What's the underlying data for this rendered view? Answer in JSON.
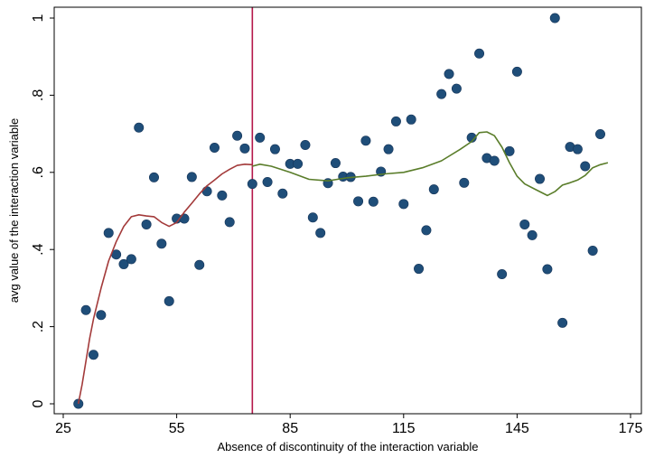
{
  "chart_data": {
    "type": "scatter",
    "title": "",
    "xlabel": "Absence of discontinuity of the interaction variable",
    "ylabel": "avg value of the interaction variable",
    "xlim": [
      25,
      175
    ],
    "ylim": [
      0,
      1
    ],
    "x_ticks": [
      25,
      55,
      85,
      115,
      145,
      175
    ],
    "y_ticks": [
      0,
      0.2,
      0.4,
      0.6,
      0.8,
      1
    ],
    "y_tick_labels": [
      "0",
      ".2",
      ".4",
      ".6",
      ".8",
      "1"
    ],
    "grid": false,
    "legend": "none",
    "cutoff_x": 75,
    "colors": {
      "points": "#1f4e79",
      "left_fit": "#a33a3a",
      "right_fit": "#5a7d2a",
      "cutoff_line": "#b5174a"
    },
    "series": [
      {
        "type": "scatter",
        "x": [
          29,
          31,
          33,
          35,
          37,
          39,
          41,
          43,
          45,
          47,
          49,
          51,
          53,
          55,
          57,
          59,
          61,
          63,
          65,
          67,
          69,
          71,
          73,
          75,
          77,
          79,
          81,
          83,
          85,
          87,
          89,
          91,
          93,
          95,
          97,
          99,
          101,
          103,
          105,
          107,
          109,
          111,
          113,
          115,
          117,
          119,
          121,
          123,
          125,
          127,
          129,
          131,
          133,
          135,
          137,
          139,
          141,
          143,
          145,
          147,
          149,
          151,
          153,
          155,
          157,
          159,
          161,
          163,
          165,
          167
        ],
        "y": [
          0.0,
          0.243,
          0.127,
          0.23,
          0.443,
          0.387,
          0.362,
          0.375,
          0.716,
          0.465,
          0.587,
          0.415,
          0.266,
          0.48,
          0.48,
          0.588,
          0.36,
          0.551,
          0.664,
          0.54,
          0.471,
          0.695,
          0.662,
          0.57,
          0.69,
          0.575,
          0.66,
          0.545,
          0.622,
          0.622,
          0.671,
          0.483,
          0.443,
          0.572,
          0.624,
          0.589,
          0.588,
          0.525,
          0.682,
          0.524,
          0.602,
          0.66,
          0.732,
          0.518,
          0.737,
          0.35,
          0.45,
          0.556,
          0.803,
          0.855,
          0.817,
          0.573,
          0.69,
          0.908,
          0.637,
          0.63,
          0.336,
          0.655,
          0.861,
          0.465,
          0.437,
          0.583,
          0.349,
          1.0,
          0.21,
          0.666,
          0.66,
          0.616,
          0.397,
          0.699
        ]
      },
      {
        "type": "line",
        "x": [
          29,
          30,
          31,
          32,
          33,
          35,
          37,
          39,
          41,
          43,
          45,
          47,
          49,
          51,
          53,
          55,
          57,
          59,
          61,
          63,
          65,
          67,
          69,
          71,
          73,
          75
        ],
        "y": [
          0.0,
          0.05,
          0.11,
          0.17,
          0.22,
          0.3,
          0.37,
          0.42,
          0.46,
          0.485,
          0.49,
          0.487,
          0.485,
          0.47,
          0.46,
          0.47,
          0.497,
          0.52,
          0.544,
          0.565,
          0.58,
          0.596,
          0.608,
          0.618,
          0.621,
          0.62
        ]
      },
      {
        "type": "line",
        "x": [
          75,
          77,
          80,
          85,
          90,
          95,
          100,
          105,
          110,
          115,
          120,
          125,
          130,
          133,
          135,
          137,
          139,
          141,
          143,
          145,
          147,
          150,
          153,
          155,
          157,
          159,
          161,
          163,
          165,
          167,
          169
        ],
        "y": [
          0.616,
          0.621,
          0.616,
          0.6,
          0.582,
          0.578,
          0.586,
          0.59,
          0.596,
          0.6,
          0.612,
          0.63,
          0.66,
          0.68,
          0.703,
          0.705,
          0.695,
          0.665,
          0.625,
          0.59,
          0.57,
          0.555,
          0.54,
          0.55,
          0.567,
          0.573,
          0.58,
          0.592,
          0.612,
          0.62,
          0.625
        ]
      }
    ]
  }
}
